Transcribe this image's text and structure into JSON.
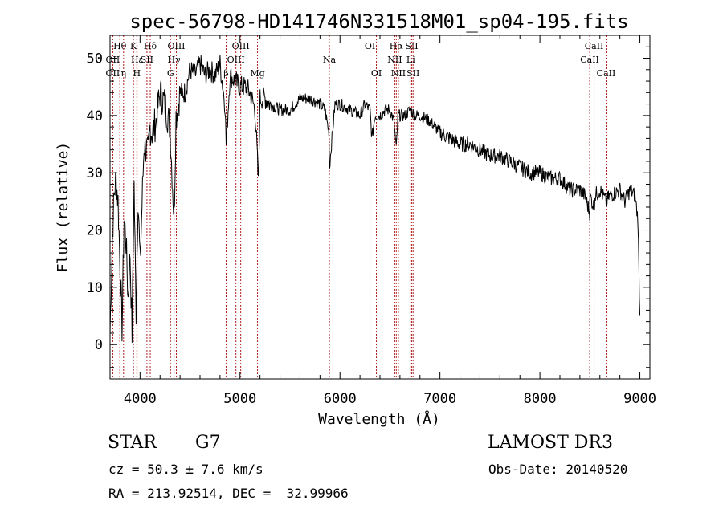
{
  "chart_data": {
    "type": "line",
    "title": "spec-56798-HD141746N331518M01_sp04-195.fits",
    "xlabel": "Wavelength (Å)",
    "ylabel": "Flux (relative)",
    "xlim": [
      3700,
      9100
    ],
    "ylim": [
      -6,
      54
    ],
    "x_ticks": [
      4000,
      5000,
      6000,
      7000,
      8000,
      9000
    ],
    "y_ticks": [
      0,
      10,
      20,
      30,
      40,
      50
    ],
    "grid": false,
    "series": [
      {
        "name": "Flux",
        "x": [
          3700,
          3720,
          3740,
          3760,
          3780,
          3800,
          3820,
          3840,
          3860,
          3880,
          3900,
          3920,
          3940,
          3960,
          3980,
          4000,
          4040,
          4080,
          4100,
          4120,
          4160,
          4200,
          4250,
          4300,
          4340,
          4360,
          4400,
          4450,
          4500,
          4550,
          4600,
          4650,
          4700,
          4750,
          4800,
          4850,
          4861,
          4900,
          4950,
          5000,
          5050,
          5100,
          5150,
          5170,
          5183,
          5200,
          5250,
          5300,
          5400,
          5500,
          5600,
          5700,
          5800,
          5850,
          5890,
          5895,
          5950,
          6000,
          6100,
          6200,
          6250,
          6300,
          6320,
          6350,
          6400,
          6450,
          6500,
          6540,
          6563,
          6580,
          6600,
          6650,
          6700,
          6750,
          6800,
          6900,
          7000,
          7100,
          7200,
          7300,
          7400,
          7500,
          7600,
          7700,
          7800,
          7900,
          8000,
          8100,
          8200,
          8300,
          8400,
          8450,
          8498,
          8500,
          8542,
          8550,
          8600,
          8662,
          8700,
          8800,
          8850,
          8900,
          8950,
          8980,
          9000
        ],
        "y": [
          2,
          17,
          26,
          29,
          25,
          14,
          3,
          22,
          18,
          8,
          16,
          2,
          28,
          6,
          26,
          14,
          35,
          33,
          38,
          37,
          39,
          44,
          42,
          38,
          22,
          40,
          44,
          44,
          48,
          47,
          49,
          47,
          48,
          47,
          49,
          42,
          35,
          47,
          46,
          45,
          45,
          44,
          41,
          34,
          28,
          43,
          43,
          42,
          41,
          41,
          43,
          43,
          42,
          41,
          37,
          31,
          42,
          42,
          41,
          40,
          42,
          41,
          36,
          40,
          40,
          41,
          41,
          39,
          34,
          40,
          40,
          40,
          41,
          40,
          40,
          39,
          37,
          36,
          35,
          35,
          34,
          33,
          33,
          32,
          31,
          30,
          30,
          29,
          29,
          27,
          27,
          26,
          23,
          26,
          24,
          26,
          27,
          25,
          26,
          27,
          25,
          27,
          26,
          22,
          5
        ]
      }
    ],
    "lines": [
      {
        "label": "Hθ",
        "x": 3798,
        "row": 0
      },
      {
        "label": "OII",
        "x": 3727,
        "row": 1
      },
      {
        "label": "OII",
        "x": 3727,
        "row": 2
      },
      {
        "label": "K",
        "x": 3934,
        "row": 0
      },
      {
        "label": "Hε",
        "x": 3970,
        "row": 1
      },
      {
        "label": "η",
        "x": 3835,
        "row": 2
      },
      {
        "label": "Hδ",
        "x": 4102,
        "row": 0
      },
      {
        "label": "SII",
        "x": 4069,
        "row": 1
      },
      {
        "label": "H",
        "x": 3968,
        "row": 2
      },
      {
        "label": "OIII",
        "x": 4363,
        "row": 0
      },
      {
        "label": "Hγ",
        "x": 4340,
        "row": 1
      },
      {
        "label": "G",
        "x": 4305,
        "row": 2
      },
      {
        "label": "OIII",
        "x": 5007,
        "row": 0
      },
      {
        "label": "OIII",
        "x": 4959,
        "row": 1
      },
      {
        "label": "β",
        "x": 4861,
        "row": 2
      },
      {
        "label": "Mg",
        "x": 5175,
        "row": 2
      },
      {
        "label": "Na",
        "x": 5894,
        "row": 1
      },
      {
        "label": "OI",
        "x": 6300,
        "row": 0
      },
      {
        "label": "OI",
        "x": 6364,
        "row": 2
      },
      {
        "label": "Hα",
        "x": 6563,
        "row": 0
      },
      {
        "label": "NII",
        "x": 6548,
        "row": 1
      },
      {
        "label": "NII",
        "x": 6584,
        "row": 2
      },
      {
        "label": "SII",
        "x": 6717,
        "row": 0
      },
      {
        "label": "Li",
        "x": 6708,
        "row": 1
      },
      {
        "label": "SII",
        "x": 6731,
        "row": 2
      },
      {
        "label": "CaII",
        "x": 8542,
        "row": 0
      },
      {
        "label": "CaII",
        "x": 8498,
        "row": 1
      },
      {
        "label": "CaII",
        "x": 8662,
        "row": 2
      }
    ]
  },
  "info": {
    "object_class": "STAR",
    "subclass": "G7",
    "survey": "LAMOST DR3",
    "redshift": "cz = 50.3 ± 7.6 km/s",
    "obs_date": "Obs-Date: 20140520",
    "coords": "RA = 213.92514, DEC =  32.99966"
  }
}
